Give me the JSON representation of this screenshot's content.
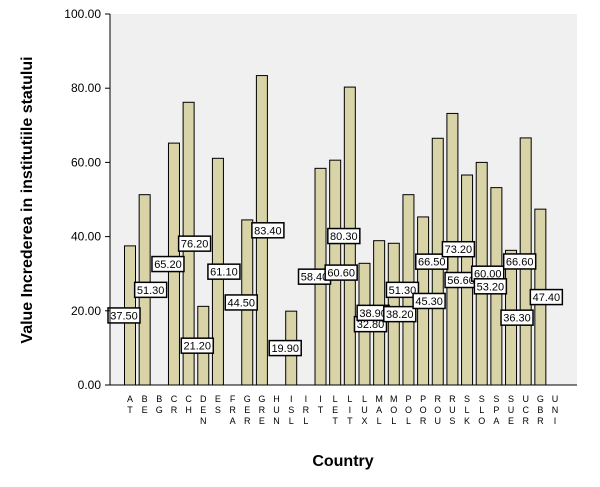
{
  "chart_data": {
    "type": "bar",
    "xlabel": "Country",
    "ylabel": "Value Increderea in institutiile statului",
    "ylim": [
      0,
      100
    ],
    "yticks": [
      "0.00",
      "20.00",
      "40.00",
      "60.00",
      "80.00",
      "100.00"
    ],
    "grid": false,
    "legend": "none",
    "categories": [
      "AT",
      "BE",
      "BG",
      "CR",
      "CH",
      "DEN",
      "ES",
      "FRA",
      "GER",
      "GRE",
      "HUN",
      "ISL",
      "IRL",
      "IT",
      "LET",
      "LIT",
      "LUX",
      "MAL",
      "MOL",
      "POL",
      "POR",
      "ROU",
      "RUS",
      "SLK",
      "SLO",
      "SPA",
      "SUE",
      "UCR",
      "GBR",
      "UNI"
    ],
    "values": [
      37.5,
      51.3,
      null,
      65.2,
      76.2,
      21.2,
      61.1,
      null,
      44.5,
      83.4,
      null,
      19.9,
      null,
      58.4,
      60.6,
      80.3,
      32.8,
      38.9,
      38.2,
      51.3,
      45.3,
      66.5,
      73.2,
      56.6,
      60.0,
      53.2,
      36.3,
      66.6,
      47.4,
      null
    ],
    "data_labels": [
      "37.50",
      "51.30",
      null,
      "65.20",
      "76.20",
      "21.20",
      "61.10",
      null,
      "44.50",
      "83.40",
      null,
      "19.90",
      null,
      "58.40",
      "60.60",
      "80.30",
      "32.80",
      "38.90",
      "38.20",
      "51.30",
      "45.30",
      "66.50",
      "73.20",
      "56.60",
      "60.00",
      "53.20",
      "36.30",
      "66.60",
      "47.40",
      null
    ],
    "colors": {
      "bar_fill": "#d8d4a8",
      "bar_stroke": "#000000",
      "plot_bg": "#f0f0f0",
      "page_bg": "#ffffff",
      "label_bg": "#ffffff"
    }
  }
}
